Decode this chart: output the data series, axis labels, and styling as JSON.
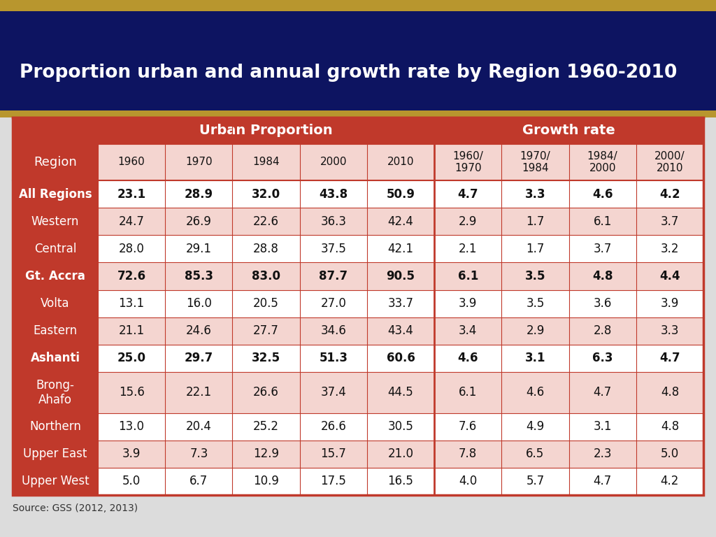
{
  "title": "Proportion urban and annual growth rate by Region 1960-2010",
  "title_bg": "#0d1461",
  "title_color": "#ffffff",
  "source": "Source: GSS (2012, 2013)",
  "header_bg": "#c0392b",
  "header_text_color": "#ffffff",
  "region_col_bg": "#c0392b",
  "region_col_text": "#ffffff",
  "col_headers_level2_urban": [
    "1960",
    "1970",
    "1984",
    "2000",
    "2010"
  ],
  "col_headers_level2_growth": [
    "1960/\n1970",
    "1970/\n1984",
    "1984/\n2000",
    "2000/\n2010"
  ],
  "rows": [
    {
      "region": "All Regions",
      "bold": true,
      "data": [
        "23.1",
        "28.9",
        "32.0",
        "43.8",
        "50.9",
        "4.7",
        "3.3",
        "4.6",
        "4.2"
      ],
      "bg": "#ffffff"
    },
    {
      "region": "Western",
      "bold": false,
      "data": [
        "24.7",
        "26.9",
        "22.6",
        "36.3",
        "42.4",
        "2.9",
        "1.7",
        "6.1",
        "3.7"
      ],
      "bg": "#f4d5d0"
    },
    {
      "region": "Central",
      "bold": false,
      "data": [
        "28.0",
        "29.1",
        "28.8",
        "37.5",
        "42.1",
        "2.1",
        "1.7",
        "3.7",
        "3.2"
      ],
      "bg": "#ffffff"
    },
    {
      "region": "Gt. Accra",
      "bold": true,
      "data": [
        "72.6",
        "85.3",
        "83.0",
        "87.7",
        "90.5",
        "6.1",
        "3.5",
        "4.8",
        "4.4"
      ],
      "bg": "#f4d5d0"
    },
    {
      "region": "Volta",
      "bold": false,
      "data": [
        "13.1",
        "16.0",
        "20.5",
        "27.0",
        "33.7",
        "3.9",
        "3.5",
        "3.6",
        "3.9"
      ],
      "bg": "#ffffff"
    },
    {
      "region": "Eastern",
      "bold": false,
      "data": [
        "21.1",
        "24.6",
        "27.7",
        "34.6",
        "43.4",
        "3.4",
        "2.9",
        "2.8",
        "3.3"
      ],
      "bg": "#f4d5d0"
    },
    {
      "region": "Ashanti",
      "bold": true,
      "data": [
        "25.0",
        "29.7",
        "32.5",
        "51.3",
        "60.6",
        "4.6",
        "3.1",
        "6.3",
        "4.7"
      ],
      "bg": "#ffffff"
    },
    {
      "region": "Brong-\nAhafo",
      "bold": false,
      "data": [
        "15.6",
        "22.1",
        "26.6",
        "37.4",
        "44.5",
        "6.1",
        "4.6",
        "4.7",
        "4.8"
      ],
      "bg": "#f4d5d0"
    },
    {
      "region": "Northern",
      "bold": false,
      "data": [
        "13.0",
        "20.4",
        "25.2",
        "26.6",
        "30.5",
        "7.6",
        "4.9",
        "3.1",
        "4.8"
      ],
      "bg": "#ffffff"
    },
    {
      "region": "Upper East",
      "bold": false,
      "data": [
        "3.9",
        "7.3",
        "12.9",
        "15.7",
        "21.0",
        "7.8",
        "6.5",
        "2.3",
        "5.0"
      ],
      "bg": "#f4d5d0"
    },
    {
      "region": "Upper West",
      "bold": false,
      "data": [
        "5.0",
        "6.7",
        "10.9",
        "17.5",
        "16.5",
        "4.0",
        "5.7",
        "4.7",
        "4.2"
      ],
      "bg": "#ffffff"
    }
  ],
  "slide_bg": "#dcdcdc",
  "border_color": "#c0392b",
  "gold_bar_color": "#b8962e",
  "header2_urban_bg": "#f4d5d0",
  "header2_growth_bg": "#f4d5d0"
}
